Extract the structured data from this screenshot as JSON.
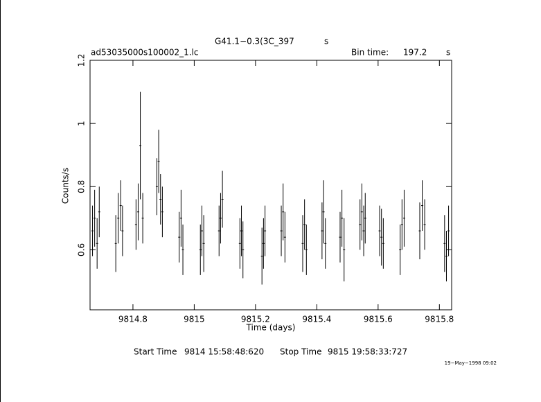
{
  "chart_data": {
    "type": "errorbar",
    "title": "G41.1−0.3(3C_397",
    "title_unit": "s",
    "file_name": "ad53035000s100002_1.lc",
    "bin_time_label": "Bin time:",
    "bin_time": "197.2",
    "bin_time_unit": "s",
    "xlabel": "Time (days)",
    "ylabel": "Counts/s",
    "start_time_label": "Start Time",
    "start_time": "9814 15:58:48:620",
    "stop_time_label": "Stop Time",
    "stop_time": "9815 19:58:33:727",
    "date_stamp": "19−May−1998 09:02",
    "xlim": [
      9814.66,
      9815.84
    ],
    "xticks": [
      9814.8,
      9815,
      9815.2,
      9815.4,
      9815.6,
      9815.8
    ],
    "ylim": [
      0.41,
      1.2
    ],
    "yticks": [
      0.6,
      0.8,
      1,
      1.2
    ],
    "series": [
      {
        "color": "#000000",
        "x": [
          9814.668,
          9814.675,
          9814.683,
          9814.69,
          9814.744,
          9814.752,
          9814.76,
          9814.766,
          9814.81,
          9814.817,
          9814.824,
          9814.832,
          9814.878,
          9814.884,
          9814.89,
          9814.896,
          9814.951,
          9814.957,
          9814.963,
          9815.02,
          9815.025,
          9815.031,
          9815.081,
          9815.086,
          9815.092,
          9815.149,
          9815.154,
          9815.159,
          9815.221,
          9815.226,
          9815.231,
          9815.284,
          9815.29,
          9815.296,
          9815.354,
          9815.36,
          9815.366,
          9815.417,
          9815.422,
          9815.428,
          9815.476,
          9815.482,
          9815.489,
          9815.541,
          9815.547,
          9815.553,
          9815.558,
          9815.605,
          9815.611,
          9815.617,
          9815.672,
          9815.678,
          9815.685,
          9815.736,
          9815.744,
          9815.752,
          9815.817,
          9815.823,
          9815.83
        ],
        "values": [
          0.66,
          0.7,
          0.62,
          0.72,
          0.62,
          0.7,
          0.74,
          0.66,
          0.68,
          0.72,
          0.93,
          0.7,
          0.8,
          0.88,
          0.76,
          0.72,
          0.64,
          0.7,
          0.6,
          0.6,
          0.66,
          0.62,
          0.66,
          0.7,
          0.76,
          0.62,
          0.66,
          0.6,
          0.58,
          0.62,
          0.66,
          0.66,
          0.72,
          0.64,
          0.62,
          0.68,
          0.6,
          0.66,
          0.72,
          0.62,
          0.64,
          0.7,
          0.6,
          0.68,
          0.72,
          0.66,
          0.7,
          0.66,
          0.64,
          0.62,
          0.6,
          0.68,
          0.7,
          0.66,
          0.74,
          0.68,
          0.62,
          0.58,
          0.66
        ],
        "errors": [
          0.08,
          0.09,
          0.08,
          0.08,
          0.09,
          0.08,
          0.08,
          0.08,
          0.08,
          0.09,
          0.17,
          0.08,
          0.09,
          0.1,
          0.08,
          0.08,
          0.08,
          0.09,
          0.08,
          0.08,
          0.08,
          0.09,
          0.08,
          0.08,
          0.09,
          0.08,
          0.08,
          0.09,
          0.09,
          0.08,
          0.08,
          0.08,
          0.09,
          0.08,
          0.09,
          0.08,
          0.08,
          0.09,
          0.1,
          0.08,
          0.08,
          0.09,
          0.1,
          0.08,
          0.09,
          0.08,
          0.08,
          0.08,
          0.09,
          0.08,
          0.08,
          0.08,
          0.09,
          0.09,
          0.08,
          0.08,
          0.09,
          0.08,
          0.08
        ]
      }
    ]
  }
}
